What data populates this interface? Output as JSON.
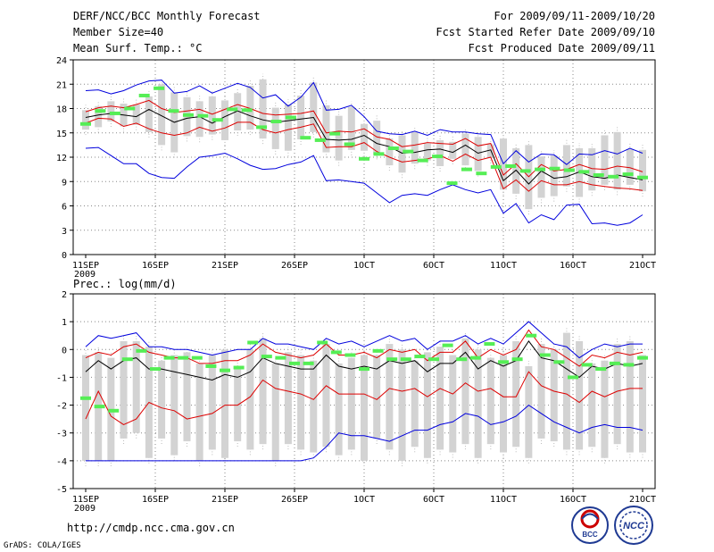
{
  "header": {
    "title": "DERF/NCC/BCC Monthly Forecast",
    "member_size": "Member Size=40",
    "variable": "Mean Surf. Temp.: °C",
    "period": "For 2009/09/11-2009/10/20",
    "started": "Fcst Started Refer Date 2009/09/10",
    "produced": "Fcst Produced Date 2009/09/11"
  },
  "footer": {
    "url": "http://cmdp.ncc.cma.gov.cn",
    "credit": "GrADS: COLA/IGES",
    "logo_bcc": "BCC",
    "logo_ncc": "NCC"
  },
  "colors": {
    "box": "#d3d3d3",
    "median": "#000000",
    "inner": "#dd0000",
    "outer": "#0000dd",
    "hist": "#55ee55"
  },
  "chart_data": [
    {
      "type": "box",
      "title": "Mean Surf. Temp.: °C",
      "x_ticks": [
        "11SEP",
        "16SEP",
        "21SEP",
        "26SEP",
        "1OCT",
        "6OCT",
        "11OCT",
        "16OCT",
        "21OCT"
      ],
      "x_tick_days": [
        1,
        6,
        11,
        16,
        21,
        26,
        31,
        36,
        41
      ],
      "year_label": "2009",
      "y_ticks": [
        "0",
        "3",
        "6",
        "9",
        "12",
        "15",
        "18",
        "21",
        "24"
      ],
      "ylim": [
        0,
        24
      ],
      "days": 40,
      "box_low": [
        15.4,
        15.7,
        16.4,
        15.8,
        16.0,
        15.1,
        13.5,
        12.6,
        14.6,
        14.5,
        14.8,
        14.1,
        15.3,
        15.4,
        14.3,
        13.0,
        12.8,
        14.2,
        15.1,
        12.6,
        11.6,
        12.9,
        12.8,
        12.4,
        11.0,
        10.1,
        11.2,
        11.6,
        10.9,
        11.8,
        11.0,
        10.3,
        11.9,
        8.0,
        7.5,
        5.6,
        7.0,
        7.2,
        8.4,
        7.1,
        7.9,
        8.6,
        8.0,
        8.6,
        7.8
      ],
      "box_high": [
        17.8,
        18.3,
        18.9,
        18.6,
        18.5,
        19.5,
        21.0,
        20.0,
        19.4,
        18.9,
        19.5,
        19.0,
        19.9,
        20.8,
        21.6,
        18.1,
        18.5,
        19.6,
        21.2,
        18.4,
        17.1,
        18.2,
        16.1,
        16.5,
        14.3,
        14.7,
        15.1,
        13.7,
        14.1,
        13.9,
        14.9,
        14.5,
        13.6,
        14.3,
        13.1,
        13.5,
        12.1,
        12.2,
        13.5,
        13.1,
        13.1,
        14.7,
        15.1,
        13.0,
        12.9
      ],
      "median": [
        16.9,
        17.2,
        17.4,
        17.2,
        17.0,
        17.9,
        17.1,
        16.3,
        16.8,
        17.0,
        16.2,
        17.0,
        17.7,
        17.1,
        16.6,
        16.3,
        16.5,
        16.7,
        16.9,
        14.2,
        14.1,
        14.2,
        14.7,
        13.7,
        13.3,
        12.5,
        12.6,
        12.9,
        13.0,
        12.6,
        13.5,
        12.5,
        12.9,
        9.1,
        10.4,
        8.7,
        10.3,
        9.4,
        9.6,
        10.2,
        9.6,
        9.4,
        9.8,
        9.5,
        9.2
      ],
      "inner_low": [
        16.2,
        16.8,
        16.7,
        15.8,
        16.2,
        15.5,
        15.0,
        14.7,
        15.0,
        15.7,
        15.2,
        15.6,
        16.3,
        16.3,
        15.4,
        15.0,
        15.4,
        15.7,
        16.1,
        13.2,
        13.3,
        13.3,
        13.8,
        12.7,
        12.0,
        11.4,
        11.6,
        11.8,
        12.2,
        11.5,
        12.4,
        11.6,
        12.0,
        8.1,
        9.2,
        7.8,
        9.1,
        8.6,
        8.6,
        9.0,
        8.6,
        8.4,
        8.2,
        8.1,
        7.9
      ],
      "inner_high": [
        17.6,
        18.1,
        18.3,
        18.1,
        18.5,
        19.0,
        18.0,
        17.5,
        17.7,
        17.9,
        17.3,
        17.9,
        18.5,
        18.0,
        17.4,
        17.2,
        17.3,
        17.4,
        17.7,
        15.0,
        15.2,
        15.1,
        15.5,
        14.5,
        14.2,
        13.3,
        13.5,
        13.8,
        13.7,
        13.6,
        14.3,
        13.4,
        13.7,
        9.8,
        11.2,
        9.6,
        11.1,
        10.3,
        10.5,
        11.1,
        10.6,
        10.5,
        10.9,
        10.7,
        10.2
      ],
      "outer_low": [
        13.1,
        13.2,
        12.2,
        11.2,
        11.2,
        10.0,
        9.5,
        9.4,
        10.8,
        12.0,
        12.2,
        12.5,
        11.8,
        11.0,
        10.5,
        10.6,
        11.1,
        11.4,
        12.2,
        9.1,
        9.2,
        9.0,
        8.8,
        7.6,
        6.4,
        7.3,
        7.5,
        7.3,
        8.0,
        8.6,
        8.0,
        7.6,
        8.0,
        5.1,
        6.3,
        3.9,
        4.9,
        4.3,
        6.1,
        6.2,
        3.8,
        3.9,
        3.6,
        3.9,
        4.9
      ],
      "outer_high": [
        20.2,
        20.3,
        19.8,
        20.2,
        20.9,
        21.4,
        21.5,
        19.9,
        20.1,
        20.8,
        19.9,
        20.5,
        21.1,
        20.6,
        19.3,
        19.7,
        18.3,
        19.4,
        21.2,
        17.8,
        17.9,
        18.4,
        17.0,
        15.2,
        14.9,
        14.8,
        15.2,
        14.7,
        15.4,
        15.1,
        15.1,
        14.9,
        14.8,
        11.2,
        12.8,
        11.4,
        12.4,
        12.3,
        11.1,
        12.4,
        12.3,
        12.8,
        12.4,
        13.1,
        12.5
      ],
      "hist": [
        16.1,
        17.7,
        17.4,
        18.0,
        19.6,
        20.5,
        17.7,
        17.2,
        17.1,
        16.6,
        17.9,
        17.8,
        15.7,
        16.4,
        16.9,
        14.4,
        14.1,
        14.9,
        13.6,
        11.8,
        12.4,
        13.1,
        12.7,
        11.6,
        12.1,
        8.8,
        10.5,
        10.0,
        10.8,
        10.9,
        10.3,
        10.5,
        10.6,
        10.4,
        10.2,
        9.8,
        9.6,
        9.9,
        9.5
      ]
    },
    {
      "type": "box",
      "title": "Prec.: log(mm/d)",
      "x_ticks": [
        "11SEP",
        "16SEP",
        "21SEP",
        "26SEP",
        "1OCT",
        "6OCT",
        "11OCT",
        "16OCT",
        "21OCT"
      ],
      "x_tick_days": [
        1,
        6,
        11,
        16,
        21,
        26,
        31,
        36,
        41
      ],
      "year_label": "2009",
      "y_ticks": [
        "-5",
        "-4",
        "-3",
        "-2",
        "-1",
        "0",
        "1",
        "2"
      ],
      "ylim": [
        -5,
        2
      ],
      "days": 40,
      "box_low": [
        -4,
        -4,
        -4,
        -3.2,
        -3,
        -3.9,
        -3.2,
        -3.8,
        -3.3,
        -4,
        -3.6,
        -3.9,
        -3.3,
        -3.6,
        -3.4,
        -4,
        -3.4,
        -3.6,
        -3.7,
        -3.5,
        -3.8,
        -3.6,
        -4,
        -3.2,
        -3.6,
        -4,
        -3.5,
        -3.9,
        -3.6,
        -3.7,
        -3.4,
        -3.9,
        -3.4,
        -3.7,
        -3.5,
        -3.9,
        -3.2,
        -3.3,
        -3.6,
        -3.6,
        -3.5,
        -3.9,
        -3.4,
        -3.7,
        -3.7
      ],
      "box_high": [
        -0.2,
        -0.1,
        -0.3,
        0.3,
        0.3,
        0.1,
        -0.4,
        -0.2,
        -0.1,
        -0.5,
        -0.2,
        0.0,
        -0.6,
        0.0,
        0.4,
        -0.5,
        -0.1,
        -0.2,
        -0.4,
        0.2,
        -0.5,
        -0.3,
        -0.2,
        -0.2,
        0.2,
        0.0,
        -0.4,
        -0.1,
        0.1,
        -0.2,
        0.4,
        0.0,
        -0.3,
        -0.2,
        0.3,
        -0.6,
        0.2,
        0.0,
        0.6,
        0.3,
        -0.5,
        -0.4,
        0.2,
        0.3,
        -0.2
      ],
      "median": [
        -0.8,
        -0.4,
        -0.7,
        -0.4,
        -0.3,
        -0.7,
        -0.7,
        -0.8,
        -0.9,
        -1.0,
        -1.1,
        -0.9,
        -1.0,
        -0.8,
        -0.3,
        -0.5,
        -0.6,
        -0.7,
        -0.7,
        -0.2,
        -0.6,
        -0.7,
        -0.6,
        -0.7,
        -0.4,
        -0.5,
        -0.4,
        -0.8,
        -0.5,
        -0.5,
        -0.1,
        -0.7,
        -0.4,
        -0.6,
        -0.4,
        0.3,
        -0.3,
        -0.4,
        -0.7,
        -1.0,
        -0.6,
        -0.7,
        -0.5,
        -0.6,
        -0.5
      ],
      "inner_low": [
        -2.5,
        -1.5,
        -2.4,
        -2.7,
        -2.5,
        -1.9,
        -2.1,
        -2.2,
        -2.5,
        -2.4,
        -2.3,
        -2.0,
        -2.0,
        -1.7,
        -1.1,
        -1.4,
        -1.5,
        -1.6,
        -1.8,
        -1.3,
        -1.6,
        -1.6,
        -1.6,
        -1.8,
        -1.4,
        -1.5,
        -1.4,
        -1.7,
        -1.4,
        -1.6,
        -1.2,
        -1.5,
        -1.4,
        -1.7,
        -1.7,
        -0.8,
        -1.3,
        -1.5,
        -1.6,
        -1.9,
        -1.5,
        -1.7,
        -1.5,
        -1.4,
        -1.4
      ],
      "inner_high": [
        -0.3,
        -0.1,
        -0.2,
        0.1,
        0.2,
        -0.1,
        -0.2,
        -0.3,
        -0.3,
        -0.5,
        -0.5,
        -0.4,
        -0.4,
        -0.2,
        0.2,
        -0.1,
        -0.2,
        -0.3,
        -0.2,
        0.2,
        -0.2,
        -0.2,
        -0.1,
        -0.3,
        0.0,
        -0.1,
        0.0,
        -0.4,
        -0.1,
        -0.1,
        0.3,
        -0.3,
        0.0,
        -0.2,
        0.0,
        0.7,
        0.1,
        0.0,
        -0.3,
        -0.6,
        -0.2,
        -0.3,
        -0.1,
        -0.2,
        -0.1
      ],
      "outer_low": [
        -4,
        -4,
        -4,
        -4,
        -4,
        -4,
        -4,
        -4,
        -4,
        -4,
        -4,
        -4,
        -4,
        -4,
        -4,
        -4,
        -4,
        -4,
        -3.9,
        -3.5,
        -3.0,
        -3.1,
        -3.1,
        -3.2,
        -3.3,
        -3.1,
        -2.9,
        -2.9,
        -2.7,
        -2.6,
        -2.3,
        -2.4,
        -2.7,
        -2.6,
        -2.4,
        -2.0,
        -2.3,
        -2.6,
        -2.8,
        -3.0,
        -2.8,
        -2.7,
        -2.8,
        -2.8,
        -2.9
      ],
      "outer_high": [
        0.1,
        0.5,
        0.4,
        0.5,
        0.6,
        0.1,
        0.1,
        0.0,
        0.0,
        -0.1,
        -0.2,
        -0.1,
        0.0,
        0.0,
        0.4,
        0.2,
        0.2,
        0.1,
        0.0,
        0.4,
        0.2,
        0.3,
        0.1,
        0.3,
        0.5,
        0.3,
        0.4,
        0.0,
        0.3,
        0.3,
        0.5,
        0.2,
        0.4,
        0.2,
        0.6,
        1.0,
        0.6,
        0.2,
        0.1,
        -0.3,
        0.0,
        0.2,
        0.1,
        0.2,
        0.2
      ],
      "hist": [
        -1.75,
        -2.05,
        -2.2,
        -0.35,
        -0.05,
        -0.7,
        -0.3,
        -0.3,
        -0.3,
        -0.6,
        -0.75,
        -0.65,
        0.25,
        -0.25,
        -0.3,
        -0.5,
        -0.5,
        0.25,
        -0.1,
        -0.2,
        -0.7,
        -0.05,
        -0.35,
        -0.35,
        -0.25,
        -0.35,
        0.15,
        -0.35,
        -0.3,
        0.2,
        -0.45,
        -0.35,
        0.5,
        -0.2,
        -0.45,
        -1.0,
        -0.55,
        -0.7,
        -0.5,
        -0.55,
        -0.3
      ]
    }
  ]
}
